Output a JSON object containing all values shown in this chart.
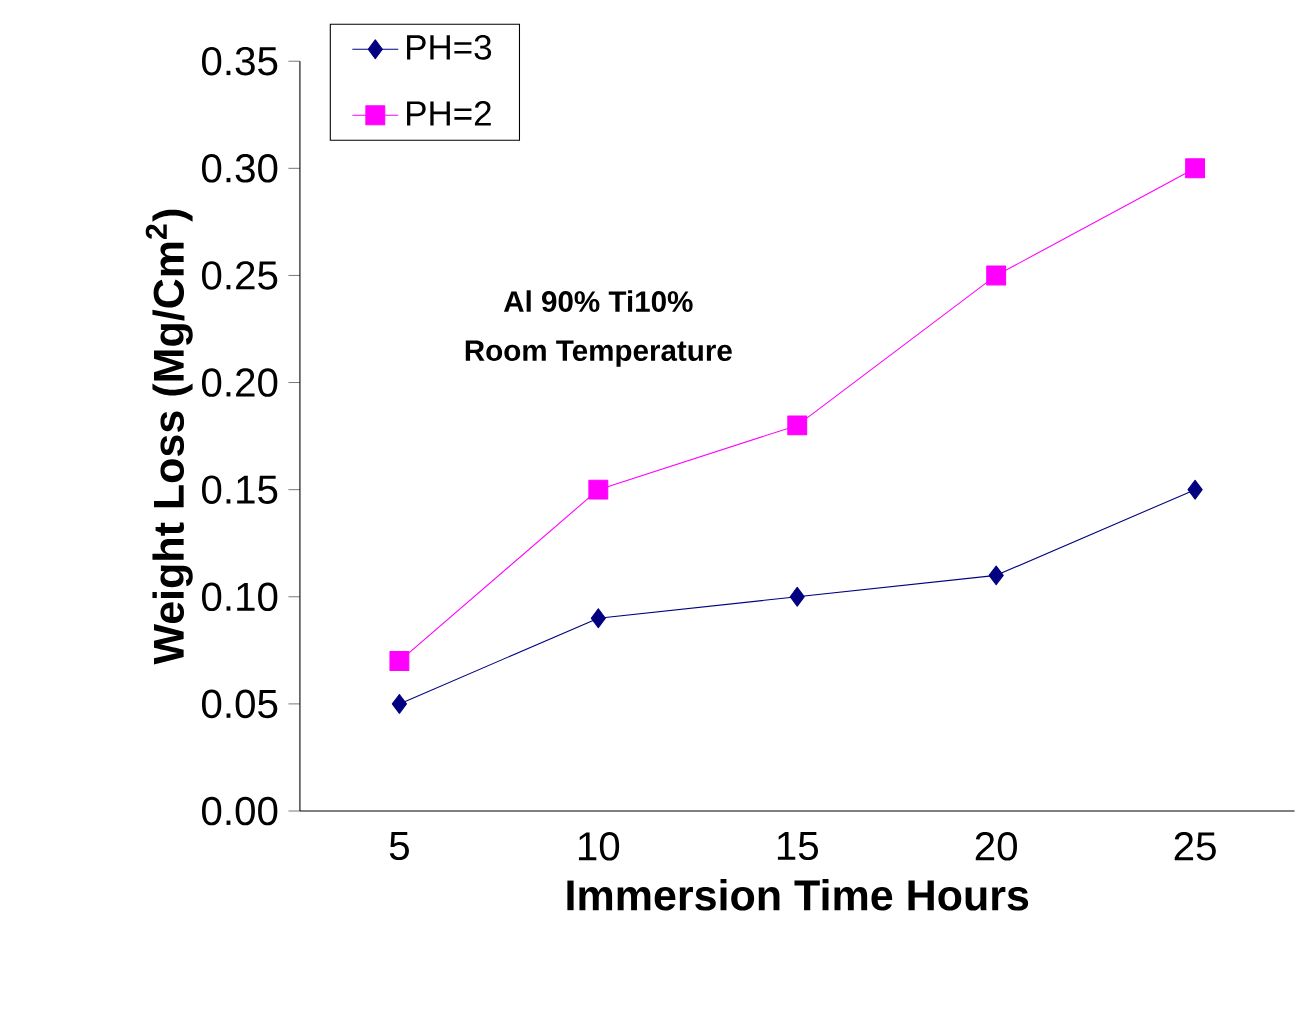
{
  "chart_data": {
    "type": "line",
    "xlabel": "Immersion Time Hours",
    "ylabel": "Weight Loss (Mg/Cm$^{2}$)",
    "categories": [
      "5",
      "10",
      "15",
      "20",
      "25"
    ],
    "ylim": [
      0,
      0.35
    ],
    "yticks": [
      {
        "value": 0,
        "label": "0.00"
      },
      {
        "value": 0.05,
        "label": "0.05"
      },
      {
        "value": 0.1,
        "label": "0.10"
      },
      {
        "value": 0.15,
        "label": "0.15"
      },
      {
        "value": 0.2,
        "label": "0.20"
      },
      {
        "value": 0.25,
        "label": "0.25"
      },
      {
        "value": 0.3,
        "label": "0.30"
      },
      {
        "value": 0.35,
        "label": "0.35"
      }
    ],
    "series": [
      {
        "name": "PH=3",
        "color": "#000080",
        "marker": "diamond",
        "values": [
          0.05,
          0.09,
          0.1,
          0.11,
          0.15
        ]
      },
      {
        "name": "PH=2",
        "color": "#ff00ff",
        "marker": "square",
        "values": [
          0.07,
          0.15,
          0.18,
          0.25,
          0.3
        ]
      }
    ],
    "annotations": [
      "Al 90%  Ti10%",
      "Room  Temperature"
    ],
    "legend": "top left",
    "grid": false
  }
}
